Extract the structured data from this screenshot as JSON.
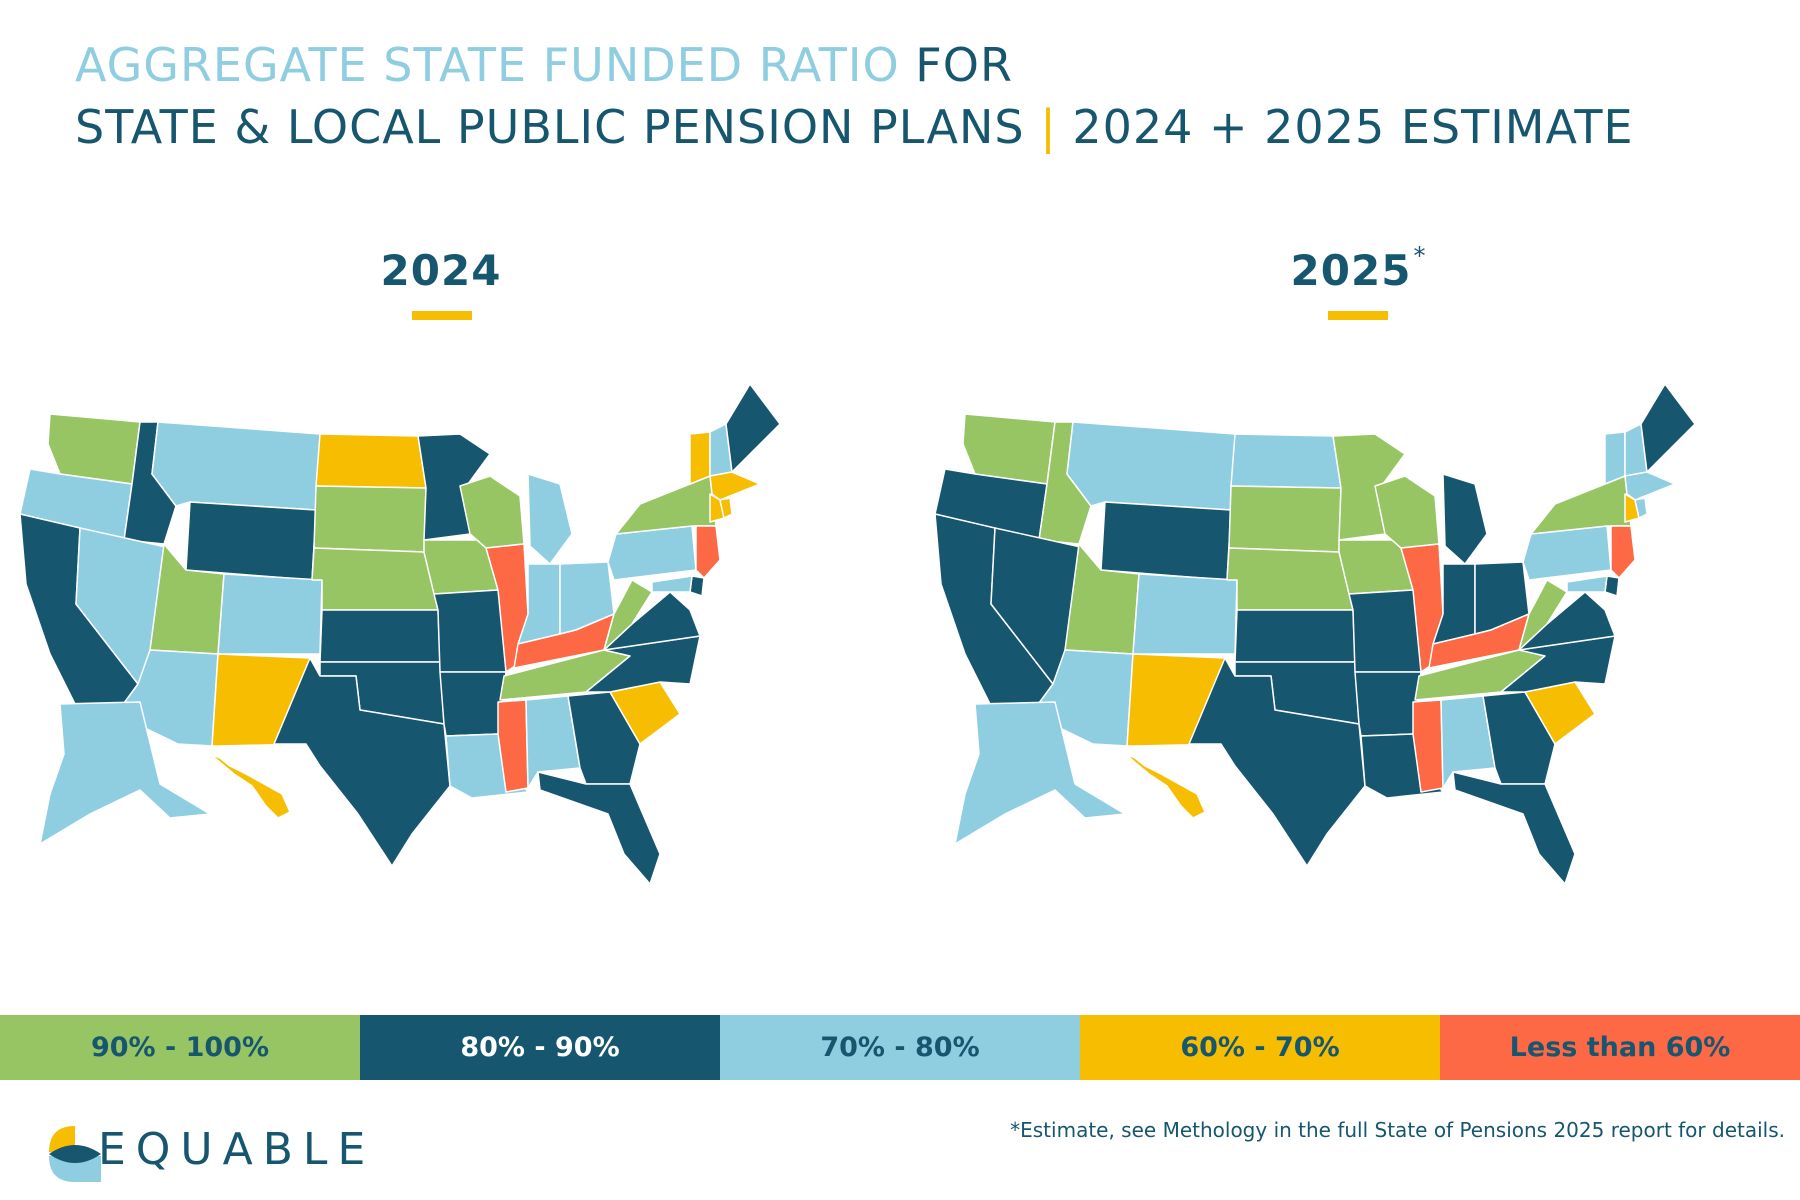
{
  "title": {
    "line1_highlight": "AGGREGATE STATE FUNDED RATIO",
    "line1_rest": "FOR",
    "line2_main": "STATE & LOCAL PUBLIC PENSION PLANS",
    "line2_sep": "|",
    "line2_rest": "2024 + 2025 ESTIMATE"
  },
  "maps": [
    {
      "year": "2024",
      "asterisk": "",
      "categories": {
        "WA": "90% - 100%",
        "OR": "70% - 80%",
        "CA": "80% - 90%",
        "ID": "80% - 90%",
        "NV": "70% - 80%",
        "MT": "70% - 80%",
        "WY": "80% - 90%",
        "UT": "90% - 100%",
        "AZ": "70% - 80%",
        "CO": "70% - 80%",
        "NM": "60% - 70%",
        "ND": "60% - 70%",
        "SD": "90% - 100%",
        "NE": "90% - 100%",
        "KS": "80% - 90%",
        "OK": "80% - 90%",
        "TX": "80% - 90%",
        "MN": "80% - 90%",
        "IA": "90% - 100%",
        "MO": "80% - 90%",
        "AR": "80% - 90%",
        "LA": "70% - 80%",
        "WI": "90% - 100%",
        "IL": "Less than 60%",
        "MI": "70% - 80%",
        "IN": "70% - 80%",
        "OH": "70% - 80%",
        "KY": "Less than 60%",
        "TN": "90% - 100%",
        "MS": "Less than 60%",
        "AL": "70% - 80%",
        "GA": "80% - 90%",
        "FL": "80% - 90%",
        "SC": "60% - 70%",
        "NC": "80% - 90%",
        "VA": "80% - 90%",
        "WV": "90% - 100%",
        "PA": "70% - 80%",
        "NY": "90% - 100%",
        "NJ": "Less than 60%",
        "VT": "60% - 70%",
        "NH": "70% - 80%",
        "ME": "80% - 90%",
        "MA": "60% - 70%",
        "CT": "60% - 70%",
        "RI": "60% - 70%",
        "DE": "80% - 90%",
        "MD": "70% - 80%",
        "AK": "70% - 80%",
        "HI": "60% - 70%"
      }
    },
    {
      "year": "2025",
      "asterisk": "*",
      "categories": {
        "WA": "90% - 100%",
        "OR": "80% - 90%",
        "CA": "80% - 90%",
        "ID": "90% - 100%",
        "NV": "80% - 90%",
        "MT": "70% - 80%",
        "WY": "80% - 90%",
        "UT": "90% - 100%",
        "AZ": "70% - 80%",
        "CO": "70% - 80%",
        "NM": "60% - 70%",
        "ND": "70% - 80%",
        "SD": "90% - 100%",
        "NE": "90% - 100%",
        "KS": "80% - 90%",
        "OK": "80% - 90%",
        "TX": "80% - 90%",
        "MN": "90% - 100%",
        "IA": "90% - 100%",
        "MO": "80% - 90%",
        "AR": "80% - 90%",
        "LA": "80% - 90%",
        "WI": "90% - 100%",
        "IL": "Less than 60%",
        "MI": "80% - 90%",
        "IN": "80% - 90%",
        "OH": "80% - 90%",
        "KY": "Less than 60%",
        "TN": "90% - 100%",
        "MS": "Less than 60%",
        "AL": "70% - 80%",
        "GA": "80% - 90%",
        "FL": "80% - 90%",
        "SC": "60% - 70%",
        "NC": "80% - 90%",
        "VA": "80% - 90%",
        "WV": "90% - 100%",
        "PA": "70% - 80%",
        "NY": "90% - 100%",
        "NJ": "Less than 60%",
        "VT": "70% - 80%",
        "NH": "70% - 80%",
        "ME": "80% - 90%",
        "MA": "70% - 80%",
        "CT": "60% - 70%",
        "RI": "70% - 80%",
        "DE": "80% - 90%",
        "MD": "70% - 80%",
        "AK": "70% - 80%",
        "HI": "60% - 70%"
      }
    }
  ],
  "legend": [
    {
      "label": "90% - 100%",
      "color": "#97c564"
    },
    {
      "label": "80% - 90%",
      "color": "#17566f"
    },
    {
      "label": "70% - 80%",
      "color": "#8fcde1"
    },
    {
      "label": "60% - 70%",
      "color": "#f7bd00"
    },
    {
      "label": "Less than 60%",
      "color": "#fd6845"
    }
  ],
  "logo_text": "EQUABLE",
  "footnote": "*Estimate, see Methology in the full State of Pensions 2025 report for details."
}
